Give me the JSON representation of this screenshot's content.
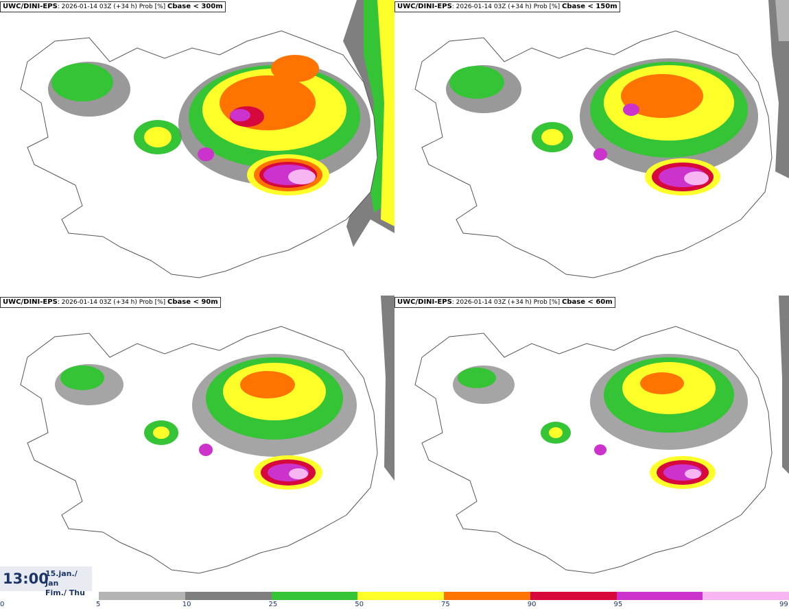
{
  "panels": [
    {
      "model": "UWC/DINI-EPS",
      "info": ": 2026-01-14 03Z (+34 h) Prob [%] ",
      "variable": "Cbase < 300m"
    },
    {
      "model": "UWC/DINI-EPS",
      "info": ": 2026-01-14 03Z (+34 h) Prob [%] ",
      "variable": "Cbase < 150m"
    },
    {
      "model": "UWC/DINI-EPS",
      "info": ": 2026-01-14 03Z (+34 h) Prob [%] ",
      "variable": "Cbase < 90m"
    },
    {
      "model": "UWC/DINI-EPS",
      "info": ": 2026-01-14 03Z (+34 h) Prob [%] ",
      "variable": "Cbase < 60m"
    }
  ],
  "valid_time": {
    "clock": "13:00",
    "date_line1": "15.jan./ Jan",
    "date_line2": "Fim./ Thu"
  },
  "colorbar": {
    "ticks": [
      "0",
      "5",
      "10",
      "25",
      "50",
      "75",
      "90",
      "95",
      "99"
    ],
    "colors": [
      "#b4b4b4",
      "#7f7f7f",
      "#35c435",
      "#ffff2a",
      "#ff7300",
      "#d6083c",
      "#cc33cc",
      "#f7b6f2"
    ]
  },
  "legend_colors": {
    "light_gray": "#b4b4b4",
    "dark_gray": "#7f7f7f",
    "green": "#35c435",
    "yellow": "#ffff2a",
    "orange": "#ff7300",
    "red": "#d6083c",
    "magenta": "#cc33cc",
    "pink": "#f7b6f2"
  }
}
